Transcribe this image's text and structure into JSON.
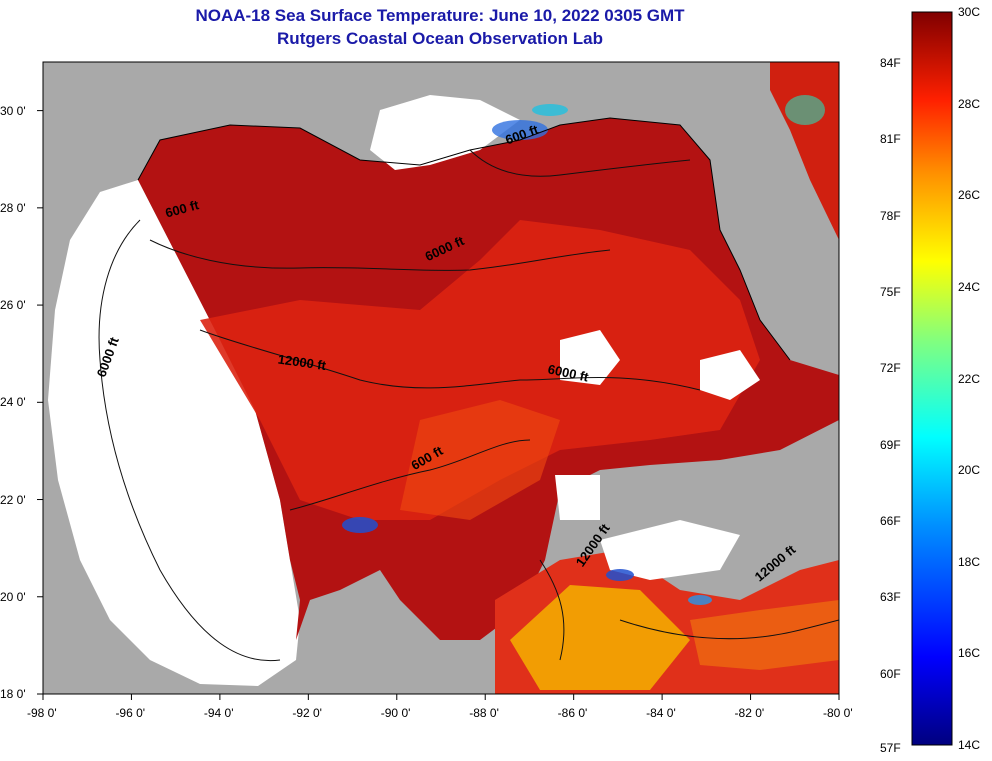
{
  "title": {
    "line1": "NOAA-18 Sea Surface Temperature:  June 10, 2022 0305 GMT",
    "line2": "Rutgers Coastal Ocean Observation Lab"
  },
  "map": {
    "lon_min": -98,
    "lon_max": -80,
    "lat_min": 18,
    "lat_max": 31,
    "lon_labels": [
      "-98 0'",
      "-96 0'",
      "-94 0'",
      "-92 0'",
      "-90 0'",
      "-88 0'",
      "-86 0'",
      "-84 0'",
      "-82 0'",
      "-80 0'"
    ],
    "lat_labels": [
      "30 0'",
      "28 0'",
      "26 0'",
      "24 0'",
      "22 0'",
      "20 0'",
      "18 0'"
    ],
    "colors": {
      "land": "#a9a9a9",
      "no_data": "#ffffff",
      "warm": "#b01010",
      "hot": "#d82010",
      "mid": "#f04010",
      "cool": "#f5b000"
    },
    "contour_labels": [
      {
        "text": "600 ft",
        "lon": -95.2,
        "lat": 27.8
      },
      {
        "text": "600 ft",
        "lon": -87.5,
        "lat": 29.3
      },
      {
        "text": "6000 ft",
        "lon": -89.3,
        "lat": 26.9
      },
      {
        "text": "12000 ft",
        "lon": -92.7,
        "lat": 24.8
      },
      {
        "text": "6000 ft",
        "lon": -96.6,
        "lat": 24.5
      },
      {
        "text": "6000 ft",
        "lon": -86.6,
        "lat": 24.6
      },
      {
        "text": "600 ft",
        "lon": -89.6,
        "lat": 22.6
      },
      {
        "text": "12000 ft",
        "lon": -85.8,
        "lat": 20.6
      },
      {
        "text": "12000 ft",
        "lon": -81.8,
        "lat": 20.3
      }
    ]
  },
  "colorbar": {
    "min_c": 14,
    "max_c": 30,
    "c_labels": [
      {
        "text": "30C",
        "c": 30
      },
      {
        "text": "28C",
        "c": 28
      },
      {
        "text": "26C",
        "c": 26
      },
      {
        "text": "24C",
        "c": 24
      },
      {
        "text": "22C",
        "c": 22
      },
      {
        "text": "20C",
        "c": 20
      },
      {
        "text": "18C",
        "c": 18
      },
      {
        "text": "16C",
        "c": 16
      },
      {
        "text": "14C",
        "c": 14
      }
    ],
    "f_labels": [
      {
        "text": "84F",
        "f": 84
      },
      {
        "text": "81F",
        "f": 81
      },
      {
        "text": "78F",
        "f": 78
      },
      {
        "text": "75F",
        "f": 75
      },
      {
        "text": "72F",
        "f": 72
      },
      {
        "text": "69F",
        "f": 69
      },
      {
        "text": "66F",
        "f": 66
      },
      {
        "text": "63F",
        "f": 63
      },
      {
        "text": "60F",
        "f": 60
      },
      {
        "text": "57F",
        "f": 57
      }
    ]
  }
}
